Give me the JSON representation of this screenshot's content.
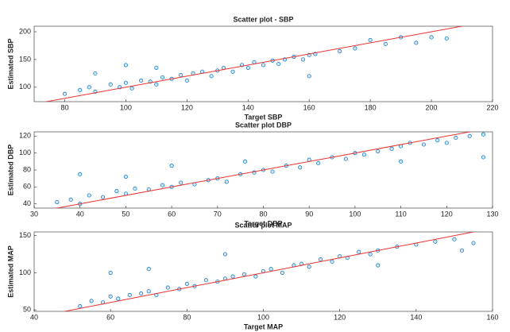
{
  "chart_data": [
    {
      "type": "scatter",
      "title": "Scatter plot - SBP",
      "xlabel": "Target SBP",
      "ylabel": "Estimated SBP",
      "xlim": [
        70,
        220
      ],
      "xticks": [
        80,
        100,
        120,
        140,
        160,
        180,
        200,
        220
      ],
      "ylim": [
        74,
        210
      ],
      "yticks": [
        100,
        150,
        200
      ],
      "color": "#0072bd",
      "x": [
        80,
        85,
        88,
        90,
        95,
        98,
        100,
        102,
        105,
        108,
        110,
        112,
        115,
        118,
        120,
        122,
        125,
        128,
        130,
        132,
        135,
        138,
        140,
        142,
        145,
        148,
        150,
        152,
        155,
        158,
        160,
        162,
        170,
        175,
        180,
        185,
        190,
        195,
        200,
        205,
        90,
        100,
        110,
        160
      ],
      "y": [
        88,
        95,
        100,
        92,
        105,
        100,
        108,
        98,
        112,
        110,
        105,
        118,
        115,
        122,
        112,
        125,
        128,
        120,
        130,
        135,
        128,
        140,
        135,
        145,
        140,
        148,
        142,
        150,
        155,
        150,
        158,
        160,
        165,
        170,
        185,
        178,
        190,
        180,
        190,
        188,
        125,
        140,
        135,
        120
      ],
      "reference_line": {
        "color": "#e8312f",
        "x": [
          70,
          220
        ],
        "y": [
          70,
          220
        ]
      }
    },
    {
      "type": "scatter",
      "title": "Scatter plot DBP",
      "xlabel": "Target DBP",
      "ylabel": "Estimated DBP",
      "xlim": [
        30,
        130
      ],
      "xticks": [
        30,
        40,
        50,
        60,
        70,
        80,
        90,
        100,
        110,
        120,
        130
      ],
      "ylim": [
        35,
        125
      ],
      "yticks": [
        40,
        60,
        80,
        100,
        120
      ],
      "color": "#0072bd",
      "x": [
        35,
        38,
        40,
        42,
        45,
        48,
        50,
        52,
        55,
        58,
        60,
        62,
        65,
        68,
        70,
        72,
        75,
        76,
        78,
        80,
        82,
        85,
        88,
        90,
        92,
        95,
        98,
        100,
        102,
        105,
        108,
        110,
        112,
        115,
        118,
        120,
        122,
        125,
        128,
        128,
        40,
        50,
        60,
        110
      ],
      "y": [
        42,
        45,
        40,
        50,
        48,
        55,
        52,
        58,
        57,
        62,
        60,
        65,
        63,
        68,
        70,
        66,
        75,
        90,
        77,
        80,
        78,
        85,
        83,
        92,
        88,
        95,
        93,
        100,
        98,
        102,
        105,
        108,
        112,
        110,
        115,
        112,
        118,
        120,
        122,
        95,
        75,
        72,
        85,
        90
      ],
      "reference_line": {
        "color": "#e8312f",
        "x": [
          30,
          130
        ],
        "y": [
          30,
          130
        ]
      }
    },
    {
      "type": "scatter",
      "title": "Scatter plot MAP",
      "xlabel": "Target MAP",
      "ylabel": "Estimated MAP",
      "xlim": [
        40,
        160
      ],
      "xticks": [
        40,
        60,
        80,
        100,
        120,
        140,
        160
      ],
      "ylim": [
        48,
        155
      ],
      "yticks": [
        50,
        100,
        150
      ],
      "color": "#0072bd",
      "x": [
        52,
        55,
        58,
        60,
        62,
        65,
        68,
        70,
        72,
        75,
        78,
        80,
        82,
        85,
        88,
        90,
        92,
        95,
        98,
        100,
        102,
        105,
        108,
        110,
        112,
        115,
        118,
        120,
        122,
        125,
        128,
        130,
        135,
        140,
        145,
        150,
        152,
        155,
        60,
        70,
        90,
        130
      ],
      "y": [
        55,
        62,
        60,
        68,
        65,
        70,
        72,
        75,
        70,
        80,
        78,
        85,
        82,
        90,
        88,
        92,
        95,
        98,
        95,
        102,
        105,
        100,
        110,
        112,
        108,
        118,
        115,
        122,
        120,
        128,
        125,
        130,
        135,
        138,
        142,
        145,
        130,
        140,
        100,
        105,
        125,
        110
      ],
      "reference_line": {
        "color": "#e8312f",
        "x": [
          40,
          160
        ],
        "y": [
          40,
          160
        ]
      }
    }
  ]
}
